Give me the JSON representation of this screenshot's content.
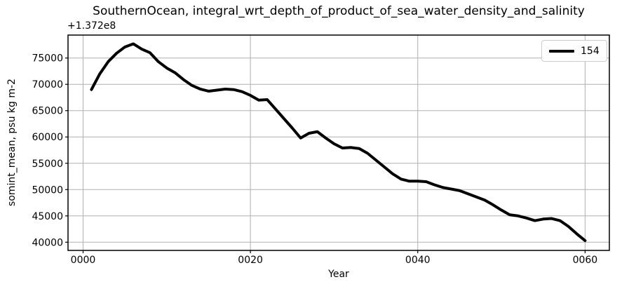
{
  "chart_data": {
    "type": "line",
    "title": "SouthernOcean, integral_wrt_depth_of_product_of_sea_water_density_and_salinity",
    "xlabel": "Year",
    "ylabel": "somint_mean, psu kg m-2",
    "y_axis_offset": "+1.372e8",
    "legend": {
      "label": "154",
      "position": "upper right"
    },
    "grid": true,
    "colors": {
      "line": "#000000",
      "grid": "#b0b0b0",
      "spine": "#000000",
      "background": "#ffffff"
    },
    "xlim": [
      -1.8,
      62.9
    ],
    "ylim": [
      38440,
      79360
    ],
    "xticks": {
      "values": [
        0,
        20,
        40,
        60
      ],
      "labels": [
        "0000",
        "0020",
        "0040",
        "0060"
      ]
    },
    "yticks": {
      "values": [
        40000,
        45000,
        50000,
        55000,
        60000,
        65000,
        70000,
        75000
      ],
      "labels": [
        "40000",
        "45000",
        "50000",
        "55000",
        "60000",
        "65000",
        "70000",
        "75000"
      ]
    },
    "x": [
      1,
      2,
      3,
      4,
      5,
      6,
      7,
      8,
      9,
      10,
      11,
      12,
      13,
      14,
      15,
      16,
      17,
      18,
      19,
      20,
      21,
      22,
      23,
      24,
      25,
      26,
      27,
      28,
      29,
      30,
      31,
      32,
      33,
      34,
      35,
      36,
      37,
      38,
      39,
      40,
      41,
      42,
      43,
      44,
      45,
      46,
      47,
      48,
      49,
      50,
      51,
      52,
      53,
      54,
      55,
      56,
      57,
      58,
      59,
      60
    ],
    "series": [
      {
        "name": "154",
        "values": [
          69000,
          72000,
          74300,
          75900,
          77100,
          77700,
          76700,
          76000,
          74300,
          73100,
          72200,
          70900,
          69800,
          69100,
          68700,
          68900,
          69100,
          69000,
          68600,
          67900,
          67000,
          67100,
          65300,
          63500,
          61700,
          59800,
          60700,
          61000,
          59800,
          58700,
          57900,
          58000,
          57800,
          56900,
          55600,
          54300,
          53000,
          52000,
          51600,
          51600,
          51500,
          50900,
          50400,
          50100,
          49800,
          49200,
          48600,
          48000,
          47100,
          46100,
          45200,
          45000,
          44600,
          44100,
          44400,
          44500,
          44100,
          43000,
          41600,
          40300
        ]
      }
    ]
  }
}
